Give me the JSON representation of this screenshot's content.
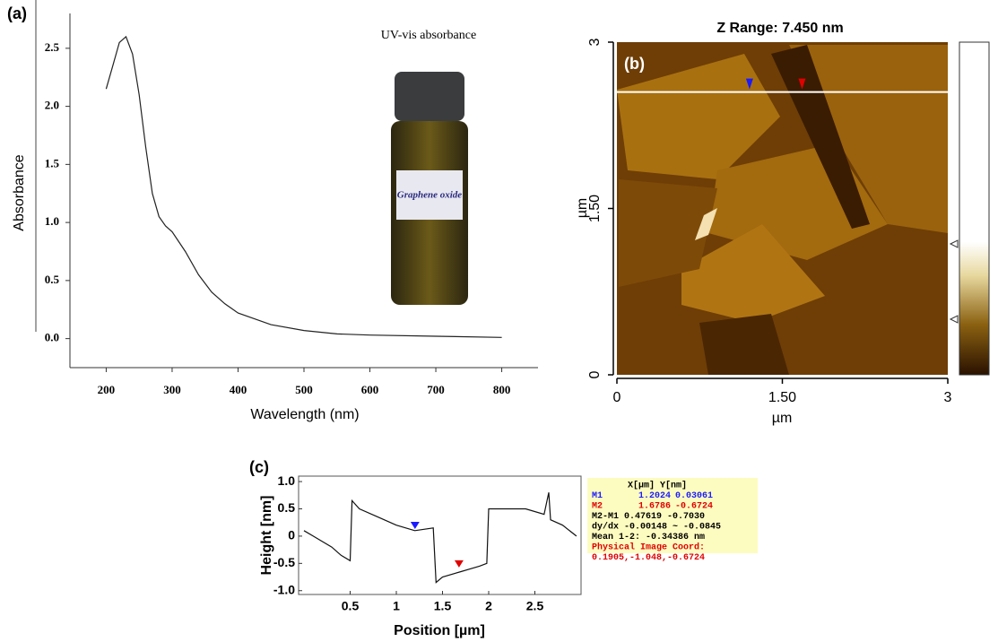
{
  "chart_data": [
    {
      "type": "line",
      "panel_label": "(a)",
      "title": "UV-vis absorbance",
      "x_label": "Wavelength (nm)",
      "y_label": "Absorbance",
      "inset_label": "Graphene oxide",
      "x": [
        200,
        210,
        220,
        230,
        240,
        250,
        260,
        270,
        280,
        290,
        300,
        320,
        340,
        360,
        380,
        400,
        450,
        500,
        550,
        600,
        700,
        800
      ],
      "values": [
        2.15,
        2.35,
        2.55,
        2.6,
        2.45,
        2.1,
        1.65,
        1.25,
        1.05,
        0.97,
        0.92,
        0.75,
        0.55,
        0.4,
        0.3,
        0.22,
        0.12,
        0.07,
        0.04,
        0.03,
        0.02,
        0.01
      ],
      "color": "#222222",
      "xlim": [
        145,
        855
      ],
      "ylim": [
        -0.25,
        2.8
      ],
      "xticks": [
        200,
        300,
        400,
        500,
        600,
        700,
        800
      ],
      "yticks": [
        {
          "value": 0,
          "label": "0.0"
        },
        0.5,
        {
          "value": 1,
          "label": "1.0"
        },
        1.5,
        {
          "value": 2,
          "label": "2.0"
        },
        2.5
      ]
    },
    {
      "type": "image",
      "panel_label": "(b)",
      "title": "Z Range:  7.450 nm",
      "x_label": "µm",
      "y_label": "µm",
      "xlim": [
        0,
        3
      ],
      "ylim": [
        0,
        3
      ],
      "profile_y": 2.55,
      "xticks": [
        0,
        {
          "value": 1.5,
          "label": "1.50"
        },
        3
      ],
      "yticks": [
        0,
        {
          "value": 1.5,
          "label": "1.50"
        },
        3
      ]
    },
    {
      "type": "line",
      "panel_label": "(c)",
      "x_label": "Position [µm]",
      "y_label": "Height [nm]",
      "color": "#111111",
      "x": [
        0,
        0.1,
        0.2,
        0.3,
        0.4,
        0.5,
        0.52,
        0.6,
        0.8,
        1.0,
        1.2,
        1.4,
        1.43,
        1.5,
        1.7,
        1.9,
        1.98,
        2.0,
        2.2,
        2.4,
        2.6,
        2.65,
        2.67,
        2.8,
        2.95
      ],
      "values": [
        0.1,
        0.0,
        -0.1,
        -0.2,
        -0.35,
        -0.45,
        0.65,
        0.5,
        0.35,
        0.2,
        0.1,
        0.15,
        -0.85,
        -0.75,
        -0.65,
        -0.55,
        -0.5,
        0.5,
        0.5,
        0.5,
        0.4,
        0.8,
        0.3,
        0.2,
        0.0
      ],
      "xlim": [
        0,
        3
      ],
      "ylim": [
        -1.07,
        1.1
      ],
      "xticks": [
        0.5,
        1,
        1.5,
        2,
        2.5
      ],
      "yticks": [
        {
          "value": -1,
          "label": "-1.0"
        },
        -0.5,
        0,
        0.5,
        {
          "value": 1,
          "label": "1.0"
        }
      ],
      "table_header": "X[µm]  Y[nm]",
      "markers": [
        {
          "name": "M1",
          "color": "#1a1aff",
          "x": 1.2024,
          "y": 0.03061
        },
        {
          "name": "M2",
          "color": "#e00000",
          "x": 1.6786,
          "y": -0.6724
        }
      ],
      "table_rows": [
        {
          "text": "M2-M1 0.47619 -0.7030",
          "color": "#000000"
        },
        {
          "text": "dy/dx -0.00148 ~ -0.0845",
          "color": "#000000"
        },
        {
          "text": "Mean 1-2: -0.34386 nm",
          "color": "#000000"
        },
        {
          "text": "Physical Image Coord:",
          "color": "#e00000"
        },
        {
          "text": "0.1905,-1.048,-0.6724",
          "color": "#e00000"
        }
      ]
    }
  ]
}
